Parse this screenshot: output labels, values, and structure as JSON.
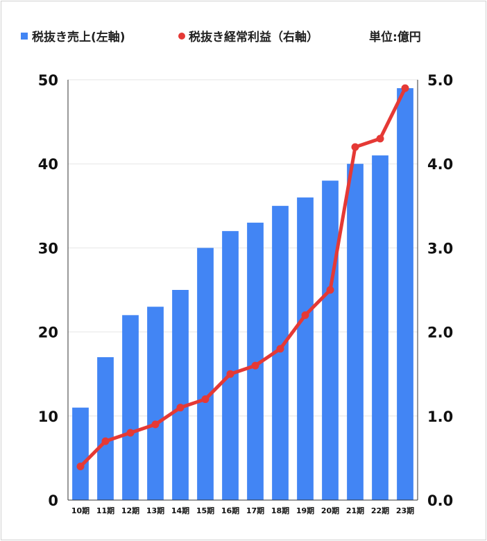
{
  "chart_data": {
    "type": "bar",
    "categories": [
      "10期",
      "11期",
      "12期",
      "13期",
      "14期",
      "15期",
      "16期",
      "17期",
      "18期",
      "19期",
      "20期",
      "21期",
      "22期",
      "23期"
    ],
    "series": [
      {
        "name": "税抜き売上(左軸)",
        "type": "bar",
        "axis": "left",
        "values": [
          11,
          17,
          22,
          23,
          25,
          30,
          32,
          33,
          35,
          36,
          38,
          40,
          41,
          49
        ]
      },
      {
        "name": "税抜き経常利益（右軸）",
        "type": "line",
        "axis": "right",
        "values": [
          0.4,
          0.7,
          0.8,
          0.9,
          1.1,
          1.2,
          1.5,
          1.6,
          1.8,
          2.2,
          2.5,
          4.2,
          4.3,
          4.9
        ]
      }
    ],
    "unit_label": "単位:億円",
    "left_axis": {
      "range": [
        0,
        50
      ],
      "ticks": [
        "0",
        "10",
        "20",
        "30",
        "40",
        "50"
      ]
    },
    "right_axis": {
      "range": [
        0,
        5
      ],
      "ticks": [
        "0.0",
        "1.0",
        "2.0",
        "3.0",
        "4.0",
        "5.0"
      ]
    },
    "grid": true,
    "legend": "top",
    "colors": {
      "bar": "#4285f4",
      "line": "#e53935",
      "grid": "#e6e6e6",
      "axis": "#333333"
    }
  }
}
